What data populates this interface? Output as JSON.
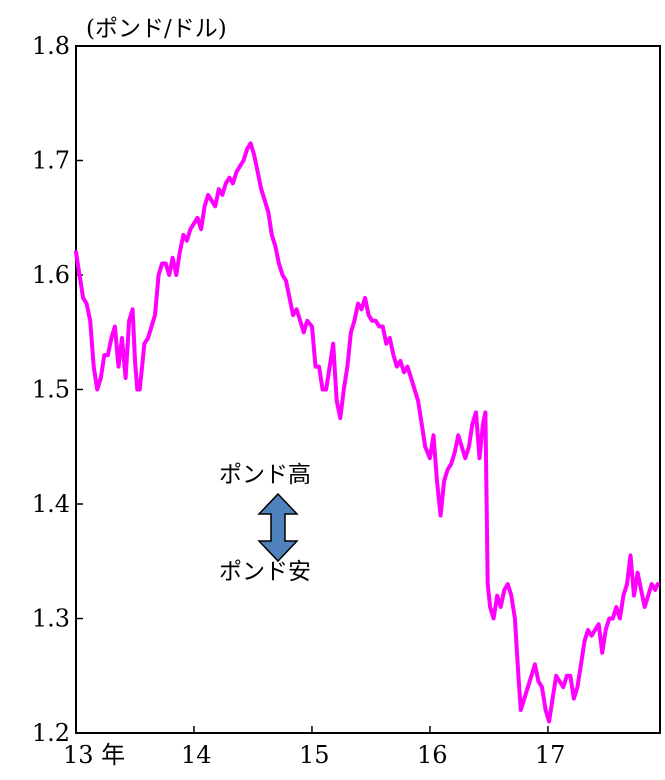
{
  "chart_data": {
    "type": "line",
    "unit_label": "(ポンド/ドル)",
    "x_tick_labels": [
      {
        "year": 2013,
        "label": "13 年"
      },
      {
        "year": 2014,
        "label": "14"
      },
      {
        "year": 2015,
        "label": "15"
      },
      {
        "year": 2016,
        "label": "16"
      },
      {
        "year": 2017,
        "label": "17"
      }
    ],
    "ylim": [
      1.2,
      1.8
    ],
    "y_ticks": [
      1.2,
      1.3,
      1.4,
      1.5,
      1.6,
      1.7,
      1.8
    ],
    "y_tick_labels": [
      "1.2",
      "1.3",
      "1.4",
      "1.5",
      "1.6",
      "1.7",
      "1.8"
    ],
    "xlim": [
      2013.0,
      2017.95
    ],
    "grid": false,
    "annotations": {
      "up_label": "ポンド高",
      "down_label": "ポンド安"
    },
    "line_color": "#FF00FF",
    "arrow_color": "#4F81BD",
    "series": [
      {
        "points": [
          [
            2013.0,
            1.62
          ],
          [
            2013.03,
            1.6
          ],
          [
            2013.06,
            1.58
          ],
          [
            2013.09,
            1.575
          ],
          [
            2013.12,
            1.56
          ],
          [
            2013.15,
            1.52
          ],
          [
            2013.18,
            1.5
          ],
          [
            2013.21,
            1.51
          ],
          [
            2013.24,
            1.53
          ],
          [
            2013.27,
            1.53
          ],
          [
            2013.3,
            1.545
          ],
          [
            2013.33,
            1.555
          ],
          [
            2013.36,
            1.52
          ],
          [
            2013.39,
            1.545
          ],
          [
            2013.42,
            1.51
          ],
          [
            2013.45,
            1.56
          ],
          [
            2013.48,
            1.57
          ],
          [
            2013.5,
            1.525
          ],
          [
            2013.52,
            1.5
          ],
          [
            2013.54,
            1.5
          ],
          [
            2013.56,
            1.52
          ],
          [
            2013.58,
            1.54
          ],
          [
            2013.61,
            1.545
          ],
          [
            2013.64,
            1.555
          ],
          [
            2013.67,
            1.565
          ],
          [
            2013.7,
            1.6
          ],
          [
            2013.73,
            1.61
          ],
          [
            2013.76,
            1.61
          ],
          [
            2013.79,
            1.6
          ],
          [
            2013.82,
            1.615
          ],
          [
            2013.85,
            1.6
          ],
          [
            2013.88,
            1.62
          ],
          [
            2013.91,
            1.635
          ],
          [
            2013.94,
            1.63
          ],
          [
            2013.97,
            1.64
          ],
          [
            2014.0,
            1.645
          ],
          [
            2014.03,
            1.65
          ],
          [
            2014.06,
            1.64
          ],
          [
            2014.09,
            1.66
          ],
          [
            2014.12,
            1.67
          ],
          [
            2014.15,
            1.665
          ],
          [
            2014.18,
            1.66
          ],
          [
            2014.21,
            1.675
          ],
          [
            2014.24,
            1.67
          ],
          [
            2014.27,
            1.68
          ],
          [
            2014.3,
            1.685
          ],
          [
            2014.33,
            1.68
          ],
          [
            2014.36,
            1.69
          ],
          [
            2014.39,
            1.695
          ],
          [
            2014.42,
            1.7
          ],
          [
            2014.45,
            1.71
          ],
          [
            2014.48,
            1.715
          ],
          [
            2014.51,
            1.705
          ],
          [
            2014.54,
            1.69
          ],
          [
            2014.57,
            1.675
          ],
          [
            2014.6,
            1.665
          ],
          [
            2014.63,
            1.655
          ],
          [
            2014.66,
            1.635
          ],
          [
            2014.69,
            1.625
          ],
          [
            2014.72,
            1.61
          ],
          [
            2014.75,
            1.6
          ],
          [
            2014.78,
            1.595
          ],
          [
            2014.81,
            1.58
          ],
          [
            2014.84,
            1.565
          ],
          [
            2014.87,
            1.57
          ],
          [
            2014.9,
            1.56
          ],
          [
            2014.93,
            1.55
          ],
          [
            2014.96,
            1.56
          ],
          [
            2015.0,
            1.555
          ],
          [
            2015.03,
            1.52
          ],
          [
            2015.06,
            1.52
          ],
          [
            2015.09,
            1.5
          ],
          [
            2015.12,
            1.5
          ],
          [
            2015.15,
            1.52
          ],
          [
            2015.18,
            1.54
          ],
          [
            2015.21,
            1.49
          ],
          [
            2015.24,
            1.475
          ],
          [
            2015.27,
            1.5
          ],
          [
            2015.3,
            1.52
          ],
          [
            2015.33,
            1.55
          ],
          [
            2015.36,
            1.56
          ],
          [
            2015.39,
            1.575
          ],
          [
            2015.42,
            1.57
          ],
          [
            2015.45,
            1.58
          ],
          [
            2015.48,
            1.565
          ],
          [
            2015.51,
            1.56
          ],
          [
            2015.54,
            1.56
          ],
          [
            2015.57,
            1.555
          ],
          [
            2015.6,
            1.555
          ],
          [
            2015.63,
            1.54
          ],
          [
            2015.66,
            1.545
          ],
          [
            2015.69,
            1.53
          ],
          [
            2015.72,
            1.52
          ],
          [
            2015.75,
            1.525
          ],
          [
            2015.78,
            1.515
          ],
          [
            2015.81,
            1.52
          ],
          [
            2015.84,
            1.51
          ],
          [
            2015.87,
            1.5
          ],
          [
            2015.9,
            1.49
          ],
          [
            2015.93,
            1.47
          ],
          [
            2015.96,
            1.45
          ],
          [
            2016.0,
            1.44
          ],
          [
            2016.03,
            1.46
          ],
          [
            2016.06,
            1.42
          ],
          [
            2016.09,
            1.39
          ],
          [
            2016.12,
            1.42
          ],
          [
            2016.15,
            1.43
          ],
          [
            2016.18,
            1.435
          ],
          [
            2016.21,
            1.445
          ],
          [
            2016.24,
            1.46
          ],
          [
            2016.27,
            1.45
          ],
          [
            2016.3,
            1.44
          ],
          [
            2016.33,
            1.45
          ],
          [
            2016.36,
            1.47
          ],
          [
            2016.39,
            1.48
          ],
          [
            2016.42,
            1.44
          ],
          [
            2016.45,
            1.47
          ],
          [
            2016.47,
            1.48
          ],
          [
            2016.49,
            1.33
          ],
          [
            2016.51,
            1.31
          ],
          [
            2016.54,
            1.3
          ],
          [
            2016.57,
            1.32
          ],
          [
            2016.6,
            1.31
          ],
          [
            2016.63,
            1.325
          ],
          [
            2016.66,
            1.33
          ],
          [
            2016.69,
            1.32
          ],
          [
            2016.72,
            1.3
          ],
          [
            2016.75,
            1.25
          ],
          [
            2016.77,
            1.22
          ],
          [
            2016.8,
            1.23
          ],
          [
            2016.83,
            1.24
          ],
          [
            2016.86,
            1.25
          ],
          [
            2016.89,
            1.26
          ],
          [
            2016.92,
            1.245
          ],
          [
            2016.95,
            1.24
          ],
          [
            2016.98,
            1.22
          ],
          [
            2017.01,
            1.21
          ],
          [
            2017.04,
            1.23
          ],
          [
            2017.07,
            1.25
          ],
          [
            2017.1,
            1.245
          ],
          [
            2017.13,
            1.24
          ],
          [
            2017.16,
            1.25
          ],
          [
            2017.19,
            1.25
          ],
          [
            2017.22,
            1.23
          ],
          [
            2017.25,
            1.24
          ],
          [
            2017.28,
            1.26
          ],
          [
            2017.31,
            1.28
          ],
          [
            2017.34,
            1.29
          ],
          [
            2017.37,
            1.285
          ],
          [
            2017.4,
            1.29
          ],
          [
            2017.43,
            1.295
          ],
          [
            2017.46,
            1.27
          ],
          [
            2017.49,
            1.29
          ],
          [
            2017.52,
            1.3
          ],
          [
            2017.55,
            1.3
          ],
          [
            2017.58,
            1.31
          ],
          [
            2017.61,
            1.3
          ],
          [
            2017.64,
            1.32
          ],
          [
            2017.67,
            1.33
          ],
          [
            2017.7,
            1.355
          ],
          [
            2017.73,
            1.32
          ],
          [
            2017.76,
            1.34
          ],
          [
            2017.79,
            1.325
          ],
          [
            2017.82,
            1.31
          ],
          [
            2017.85,
            1.32
          ],
          [
            2017.88,
            1.33
          ],
          [
            2017.91,
            1.325
          ],
          [
            2017.93,
            1.33
          ]
        ]
      }
    ]
  }
}
